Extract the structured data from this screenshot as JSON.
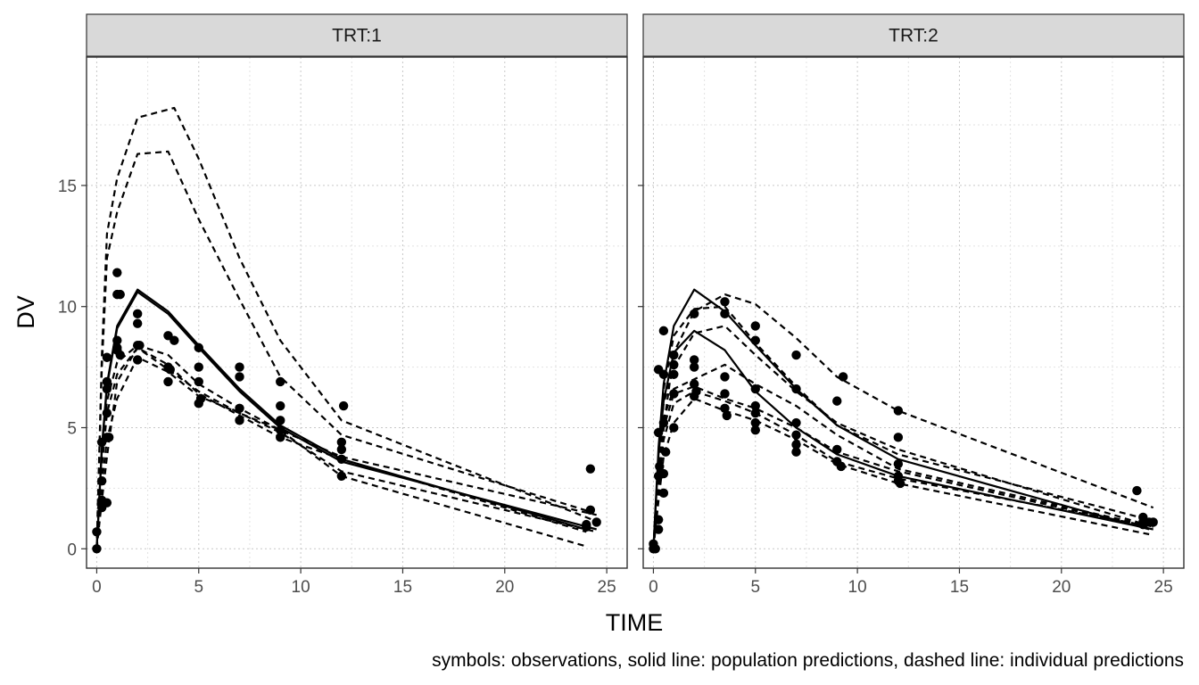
{
  "caption": "symbols: observations, solid line: population predictions, dashed line: individual predictions",
  "chart_data": {
    "type": "scatter",
    "xlabel": "TIME",
    "ylabel": "DV",
    "xlim": [
      -0.5,
      26
    ],
    "ylim": [
      -0.8,
      20.3
    ],
    "xticks": [
      "0",
      "5",
      "10",
      "15",
      "20",
      "25"
    ],
    "yticks": [
      "0",
      "5",
      "10",
      "15"
    ],
    "grid": true,
    "panels": [
      {
        "label": "TRT:1",
        "observations": [
          [
            0,
            0
          ],
          [
            0,
            0.7
          ],
          [
            0.25,
            2.8
          ],
          [
            0.25,
            4.4
          ],
          [
            0.25,
            1.7
          ],
          [
            0.25,
            2.0
          ],
          [
            0.5,
            1.9
          ],
          [
            0.5,
            7.9
          ],
          [
            0.5,
            6.9
          ],
          [
            0.5,
            5.6
          ],
          [
            0.5,
            4.6
          ],
          [
            0.5,
            6.6
          ],
          [
            0.6,
            4.6
          ],
          [
            1,
            11.4
          ],
          [
            1,
            8.6
          ],
          [
            1,
            8.2
          ],
          [
            1,
            8.3
          ],
          [
            1,
            10.5
          ],
          [
            1.15,
            10.5
          ],
          [
            1.15,
            8.0
          ],
          [
            2,
            9.7
          ],
          [
            2,
            9.3
          ],
          [
            2,
            8.4
          ],
          [
            2,
            7.8
          ],
          [
            2.1,
            8.4
          ],
          [
            3.5,
            8.8
          ],
          [
            3.5,
            7.5
          ],
          [
            3.5,
            6.9
          ],
          [
            3.6,
            7.4
          ],
          [
            3.8,
            8.6
          ],
          [
            5,
            8.3
          ],
          [
            5,
            7.5
          ],
          [
            5,
            6.9
          ],
          [
            5,
            6.0
          ],
          [
            5.1,
            6.2
          ],
          [
            7,
            7.5
          ],
          [
            7,
            7.1
          ],
          [
            7,
            5.8
          ],
          [
            7,
            5.3
          ],
          [
            9,
            6.9
          ],
          [
            9,
            5.9
          ],
          [
            9,
            5.3
          ],
          [
            9,
            4.9
          ],
          [
            9,
            4.6
          ],
          [
            12,
            4.4
          ],
          [
            12,
            4.1
          ],
          [
            12,
            3.7
          ],
          [
            12,
            3.0
          ],
          [
            12.1,
            5.9
          ],
          [
            24,
            1.0
          ],
          [
            24,
            0.9
          ],
          [
            24.2,
            1.6
          ],
          [
            24.2,
            3.3
          ],
          [
            24.5,
            1.1
          ]
        ],
        "population": [
          [
            [
              0,
              0
            ],
            [
              0.25,
              4.2
            ],
            [
              0.5,
              6.8
            ],
            [
              1,
              9.2
            ],
            [
              2,
              10.7
            ],
            [
              3.5,
              9.8
            ],
            [
              5,
              8.4
            ],
            [
              7,
              6.6
            ],
            [
              9,
              5.1
            ],
            [
              12,
              3.7
            ],
            [
              24,
              0.8
            ]
          ],
          [
            [
              0,
              0
            ],
            [
              0.25,
              4.1
            ],
            [
              0.5,
              6.7
            ],
            [
              1,
              9.1
            ],
            [
              2,
              10.6
            ],
            [
              3.5,
              9.7
            ],
            [
              5,
              8.3
            ],
            [
              7,
              6.5
            ],
            [
              9,
              5.0
            ],
            [
              12,
              3.6
            ],
            [
              24.5,
              0.8
            ]
          ]
        ],
        "individual": [
          [
            [
              0,
              0
            ],
            [
              0.25,
              8
            ],
            [
              0.5,
              13
            ],
            [
              1,
              15.3
            ],
            [
              2,
              17.8
            ],
            [
              3.8,
              18.2
            ],
            [
              5,
              16.1
            ],
            [
              7,
              12
            ],
            [
              9,
              8.6
            ],
            [
              12,
              5.3
            ],
            [
              24.3,
              1.2
            ]
          ],
          [
            [
              0,
              0
            ],
            [
              0.25,
              7.5
            ],
            [
              0.5,
              12
            ],
            [
              1,
              13.9
            ],
            [
              2,
              16.3
            ],
            [
              3.5,
              16.4
            ],
            [
              5,
              13.6
            ],
            [
              7,
              10.3
            ],
            [
              9,
              7.1
            ],
            [
              12,
              4.7
            ],
            [
              24.3,
              1.5
            ]
          ],
          [
            [
              0,
              0
            ],
            [
              0.25,
              3.7
            ],
            [
              0.5,
              6.1
            ],
            [
              1,
              7.7
            ],
            [
              2,
              8.4
            ],
            [
              3.5,
              8.0
            ],
            [
              5,
              6.8
            ],
            [
              7,
              5.8
            ],
            [
              9,
              4.9
            ],
            [
              12,
              3.8
            ],
            [
              24.5,
              1.4
            ]
          ],
          [
            [
              0,
              0
            ],
            [
              0.25,
              3.4
            ],
            [
              0.5,
              5.6
            ],
            [
              1,
              7.2
            ],
            [
              2,
              8.3
            ],
            [
              3.5,
              7.6
            ],
            [
              5,
              6.4
            ],
            [
              7,
              5.5
            ],
            [
              9,
              4.6
            ],
            [
              12,
              3.7
            ],
            [
              24,
              0.7
            ]
          ],
          [
            [
              0,
              0
            ],
            [
              0.25,
              2.7
            ],
            [
              0.5,
              4.5
            ],
            [
              1,
              6.2
            ],
            [
              2,
              7.9
            ],
            [
              3.5,
              7.3
            ],
            [
              5,
              6.3
            ],
            [
              7,
              5.6
            ],
            [
              9,
              4.8
            ],
            [
              12,
              3.2
            ],
            [
              24.5,
              0.7
            ]
          ],
          [
            [
              0,
              0
            ],
            [
              0.25,
              2.0
            ],
            [
              0.5,
              3.8
            ],
            [
              1,
              6.9
            ],
            [
              2,
              8.3
            ],
            [
              3.5,
              7.4
            ],
            [
              5,
              6.5
            ],
            [
              7,
              5.6
            ],
            [
              9,
              4.9
            ],
            [
              12,
              3.0
            ],
            [
              24,
              0.1
            ]
          ]
        ]
      },
      {
        "label": "TRT:2",
        "observations": [
          [
            0,
            0
          ],
          [
            0,
            0.2
          ],
          [
            0.1,
            0
          ],
          [
            0.25,
            0.8
          ],
          [
            0.25,
            1.2
          ],
          [
            0.25,
            3.0
          ],
          [
            0.25,
            4.8
          ],
          [
            0.25,
            7.4
          ],
          [
            0.3,
            3.4
          ],
          [
            0.5,
            2.3
          ],
          [
            0.5,
            3.1
          ],
          [
            0.5,
            5.2
          ],
          [
            0.5,
            7.2
          ],
          [
            0.5,
            9.0
          ],
          [
            0.6,
            4.0
          ],
          [
            1,
            5.0
          ],
          [
            1,
            6.4
          ],
          [
            1,
            7.2
          ],
          [
            1,
            7.6
          ],
          [
            1,
            8.0
          ],
          [
            2,
            9.7
          ],
          [
            2,
            7.8
          ],
          [
            2,
            7.5
          ],
          [
            2,
            6.8
          ],
          [
            2,
            6.3
          ],
          [
            2.1,
            6.5
          ],
          [
            3.5,
            10.2
          ],
          [
            3.5,
            9.7
          ],
          [
            3.5,
            7.1
          ],
          [
            3.5,
            6.4
          ],
          [
            3.5,
            5.8
          ],
          [
            3.6,
            5.5
          ],
          [
            5,
            9.2
          ],
          [
            5,
            8.6
          ],
          [
            5,
            6.6
          ],
          [
            5,
            5.9
          ],
          [
            5,
            5.6
          ],
          [
            5,
            5.2
          ],
          [
            5,
            4.9
          ],
          [
            7,
            8.0
          ],
          [
            7,
            6.6
          ],
          [
            7,
            5.2
          ],
          [
            7,
            4.7
          ],
          [
            7,
            4.3
          ],
          [
            7,
            4.0
          ],
          [
            9,
            6.1
          ],
          [
            9,
            4.1
          ],
          [
            9,
            3.6
          ],
          [
            9.2,
            3.4
          ],
          [
            9.3,
            7.1
          ],
          [
            12,
            5.7
          ],
          [
            12,
            4.6
          ],
          [
            12,
            3.5
          ],
          [
            12,
            3.0
          ],
          [
            12,
            2.8
          ],
          [
            12.1,
            2.7
          ],
          [
            23.7,
            2.4
          ],
          [
            24,
            1.3
          ],
          [
            24,
            1.1
          ],
          [
            24,
            1.0
          ],
          [
            24.3,
            1.1
          ],
          [
            24.5,
            1.1
          ]
        ],
        "population": [
          [
            [
              0,
              0
            ],
            [
              0.25,
              4.2
            ],
            [
              0.5,
              6.8
            ],
            [
              1,
              9.2
            ],
            [
              2,
              10.7
            ],
            [
              3.5,
              9.8
            ],
            [
              5,
              8.4
            ],
            [
              7,
              6.6
            ],
            [
              9,
              5.1
            ],
            [
              12,
              3.7
            ],
            [
              24.3,
              0.8
            ]
          ],
          [
            [
              0,
              0
            ],
            [
              0.25,
              3.9
            ],
            [
              0.5,
              6.1
            ],
            [
              1,
              8.1
            ],
            [
              2,
              9.0
            ],
            [
              3.5,
              8.2
            ],
            [
              5,
              6.5
            ],
            [
              7,
              5.0
            ],
            [
              9,
              3.9
            ],
            [
              12,
              3.0
            ],
            [
              24.5,
              0.8
            ]
          ]
        ],
        "individual": [
          [
            [
              0,
              0
            ],
            [
              0.25,
              2.5
            ],
            [
              0.5,
              5.0
            ],
            [
              1,
              8.1
            ],
            [
              2,
              9.8
            ],
            [
              3.5,
              10.5
            ],
            [
              5,
              10.1
            ],
            [
              7,
              8.7
            ],
            [
              9,
              7.1
            ],
            [
              12,
              5.7
            ],
            [
              24.5,
              1.7
            ]
          ],
          [
            [
              0,
              0
            ],
            [
              0.25,
              3.3
            ],
            [
              0.5,
              6.6
            ],
            [
              1,
              8.8
            ],
            [
              2,
              9.9
            ],
            [
              3.5,
              10.0
            ],
            [
              5,
              8.5
            ],
            [
              7,
              6.7
            ],
            [
              9,
              5.1
            ],
            [
              12,
              3.9
            ],
            [
              24.3,
              1.2
            ]
          ],
          [
            [
              0,
              0
            ],
            [
              0.25,
              3.8
            ],
            [
              0.5,
              6.0
            ],
            [
              1,
              7.5
            ],
            [
              2,
              8.9
            ],
            [
              3.5,
              9.2
            ],
            [
              5,
              8.0
            ],
            [
              7,
              6.5
            ],
            [
              9,
              5.2
            ],
            [
              12,
              4.1
            ],
            [
              24.5,
              0.9
            ]
          ],
          [
            [
              0,
              0
            ],
            [
              0.25,
              3.6
            ],
            [
              0.5,
              5.4
            ],
            [
              1,
              6.6
            ],
            [
              2,
              7.0
            ],
            [
              3.5,
              7.6
            ],
            [
              5,
              6.8
            ],
            [
              7,
              5.9
            ],
            [
              9,
              4.7
            ],
            [
              12,
              3.3
            ],
            [
              24,
              1.0
            ]
          ],
          [
            [
              0,
              0
            ],
            [
              0.25,
              3.0
            ],
            [
              0.5,
              5.0
            ],
            [
              1,
              6.4
            ],
            [
              2,
              6.7
            ],
            [
              3.5,
              6.2
            ],
            [
              5,
              5.8
            ],
            [
              7,
              5.0
            ],
            [
              9,
              4.0
            ],
            [
              12,
              3.2
            ],
            [
              24.2,
              0.9
            ]
          ],
          [
            [
              0,
              0
            ],
            [
              0.25,
              2.6
            ],
            [
              0.5,
              4.5
            ],
            [
              1,
              6.0
            ],
            [
              2,
              6.5
            ],
            [
              3.5,
              6.1
            ],
            [
              5,
              5.6
            ],
            [
              7,
              4.7
            ],
            [
              9,
              3.6
            ],
            [
              12,
              2.9
            ],
            [
              24.5,
              0.9
            ]
          ],
          [
            [
              0,
              0
            ],
            [
              0.25,
              2.0
            ],
            [
              0.5,
              3.8
            ],
            [
              1,
              5.2
            ],
            [
              2,
              6.2
            ],
            [
              3.5,
              5.7
            ],
            [
              5,
              5.3
            ],
            [
              7,
              4.5
            ],
            [
              9,
              3.5
            ],
            [
              12,
              2.7
            ],
            [
              24.3,
              0.6
            ]
          ]
        ]
      }
    ]
  }
}
